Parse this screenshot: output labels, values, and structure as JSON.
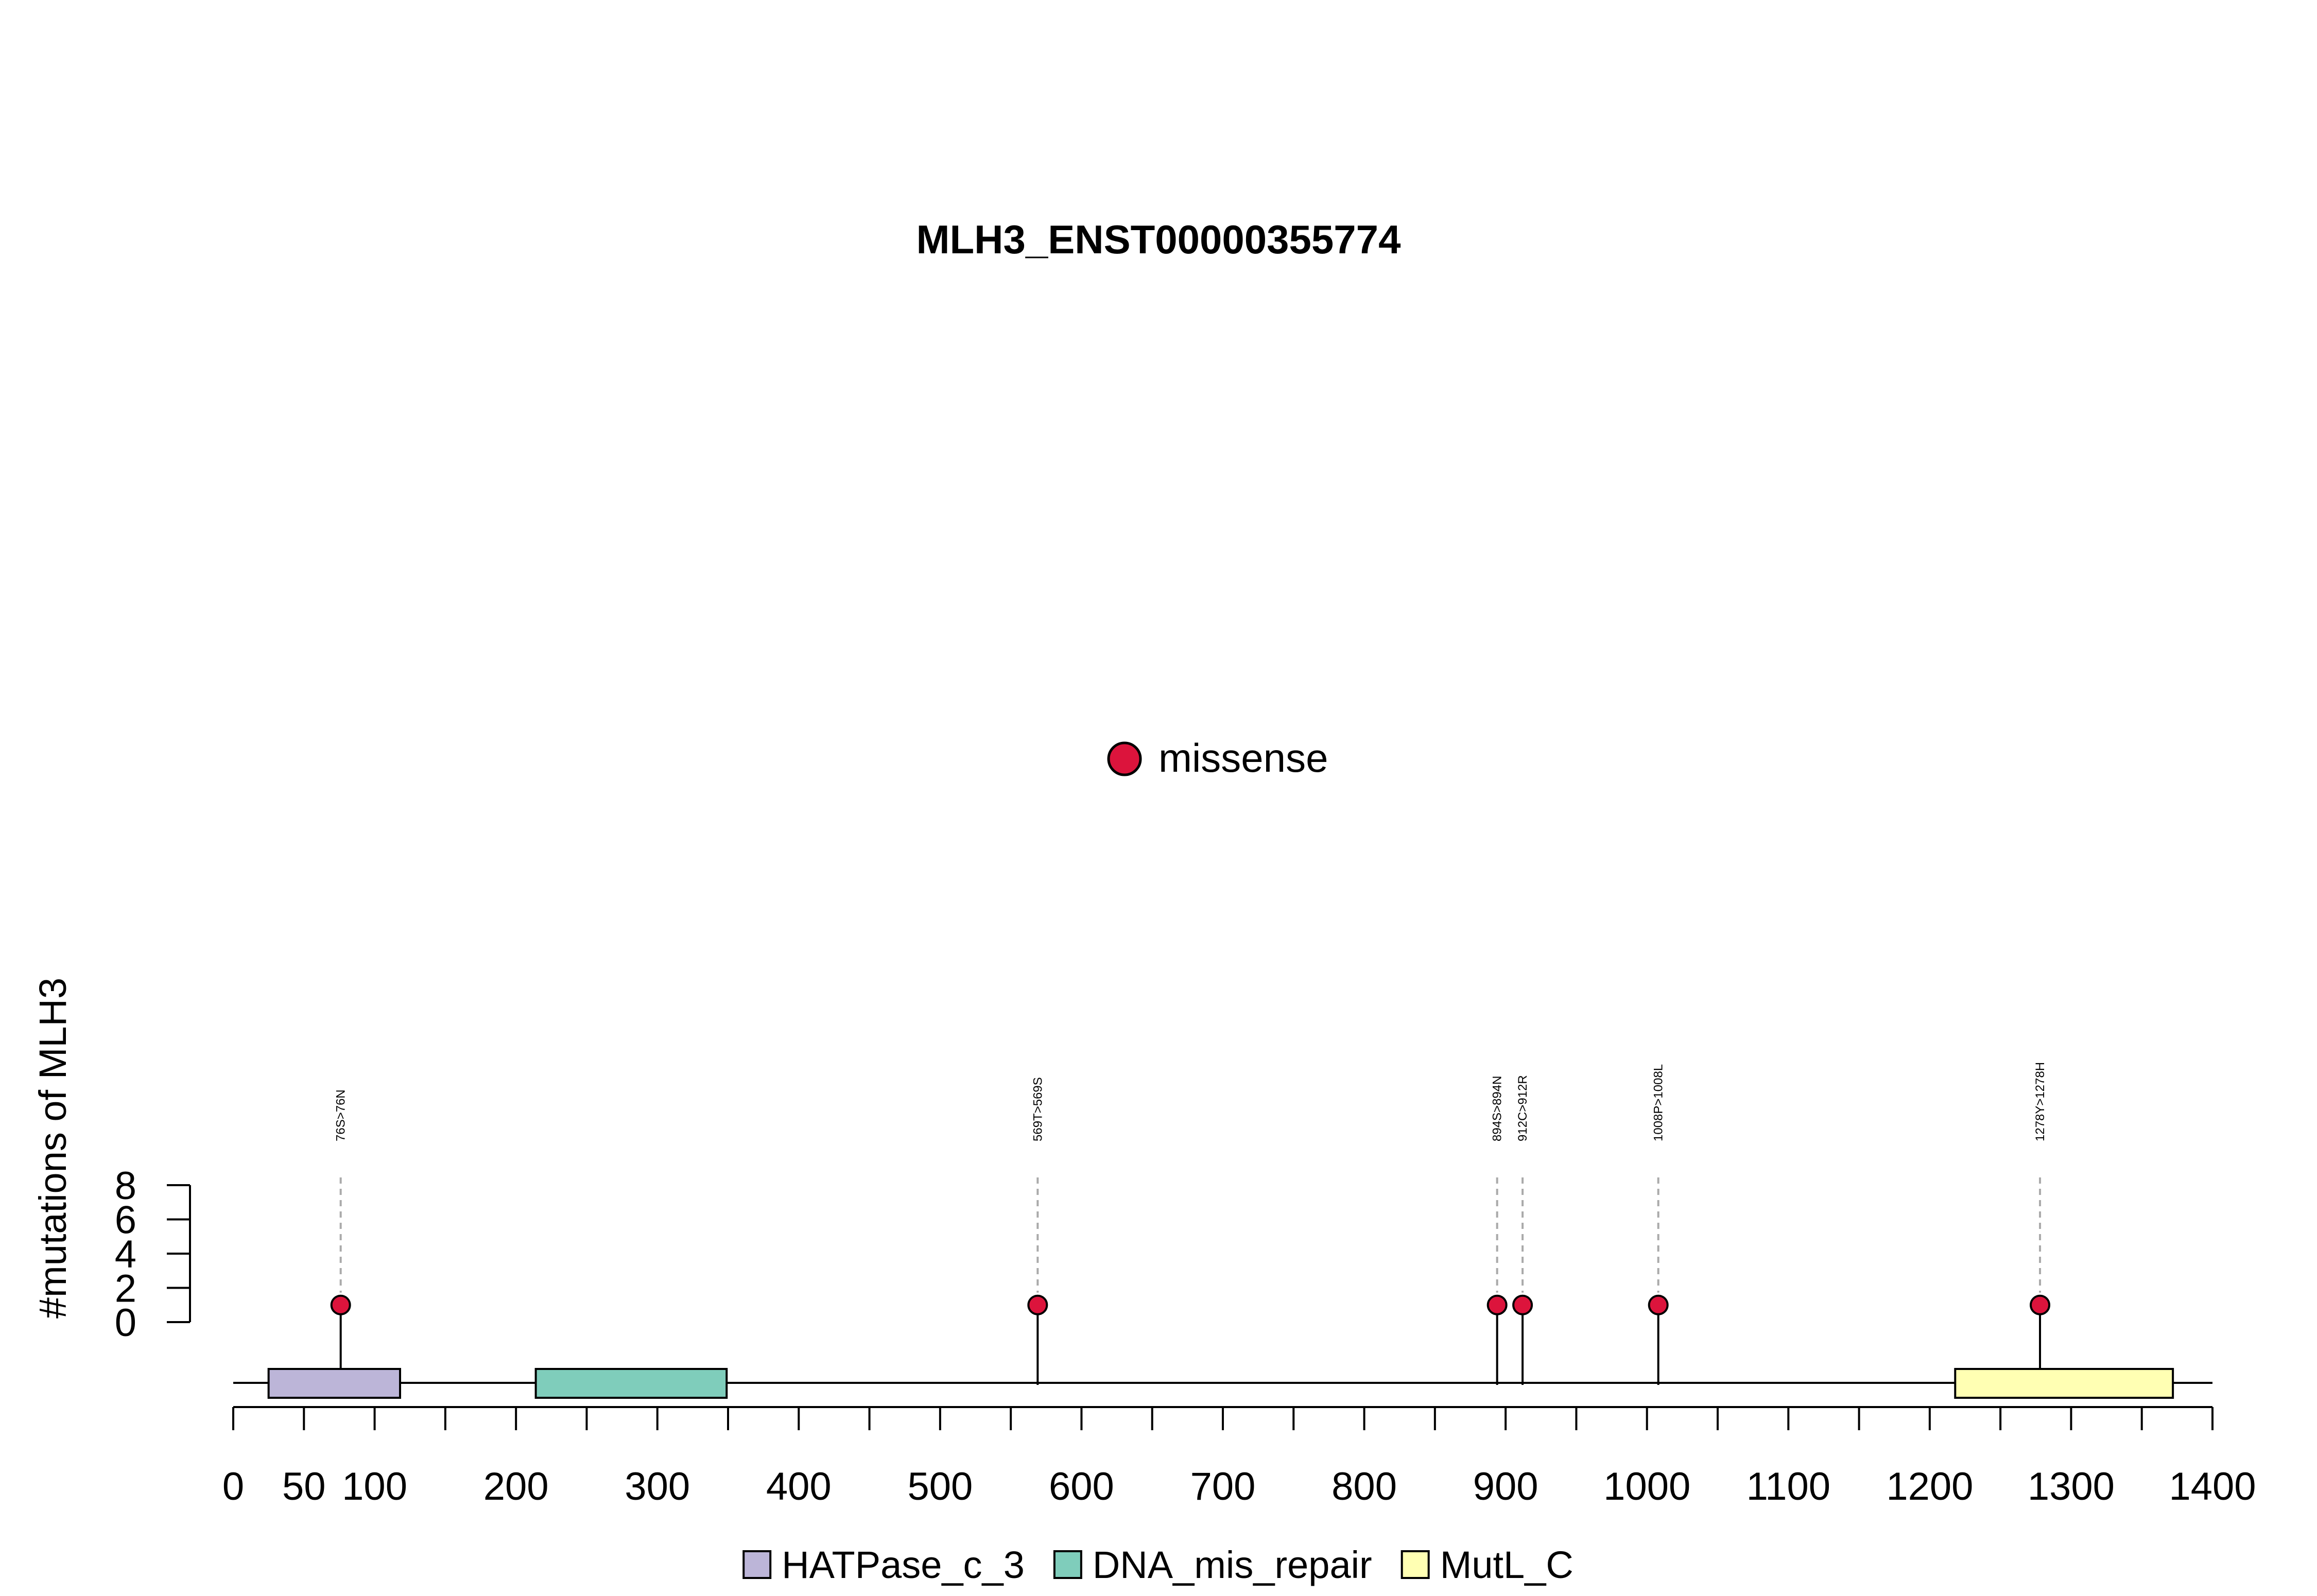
{
  "chart_data": {
    "type": "lollipop",
    "title": "MLH3_ENST00000355774",
    "ylabel": "#mutations of MLH3",
    "x": {
      "range": [
        0,
        1400
      ],
      "minor_tick_step": 50,
      "tick_labels": [
        "0",
        "50",
        "100",
        "200",
        "300",
        "400",
        "500",
        "600",
        "700",
        "800",
        "900",
        "1000",
        "1100",
        "1200",
        "1300",
        "1400"
      ]
    },
    "y": {
      "range": [
        0,
        8
      ],
      "tick_labels": [
        "0",
        "2",
        "4",
        "6",
        "8"
      ]
    },
    "mutation_legend": [
      {
        "label": "missense",
        "color": "#dc143c"
      }
    ],
    "mutations": [
      {
        "position": 76,
        "label": "76S>76N",
        "count": 1,
        "type": "missense"
      },
      {
        "position": 569,
        "label": "569T>569S",
        "count": 1,
        "type": "missense"
      },
      {
        "position": 894,
        "label": "894S>894N",
        "count": 1,
        "type": "missense"
      },
      {
        "position": 912,
        "label": "912C>912R",
        "count": 1,
        "type": "missense"
      },
      {
        "position": 1008,
        "label": "1008P>1008L",
        "count": 1,
        "type": "missense"
      },
      {
        "position": 1278,
        "label": "1278Y>1278H",
        "count": 1,
        "type": "missense"
      }
    ],
    "domains": [
      {
        "name": "HATPase_c_3",
        "start": 25,
        "end": 118,
        "color": "#bcb5d8"
      },
      {
        "name": "DNA_mis_repair",
        "start": 214,
        "end": 349,
        "color": "#7fcdbb"
      },
      {
        "name": "MutL_C",
        "start": 1218,
        "end": 1372,
        "color": "#ffffb3"
      }
    ],
    "domain_legend_placement": "bottom"
  }
}
